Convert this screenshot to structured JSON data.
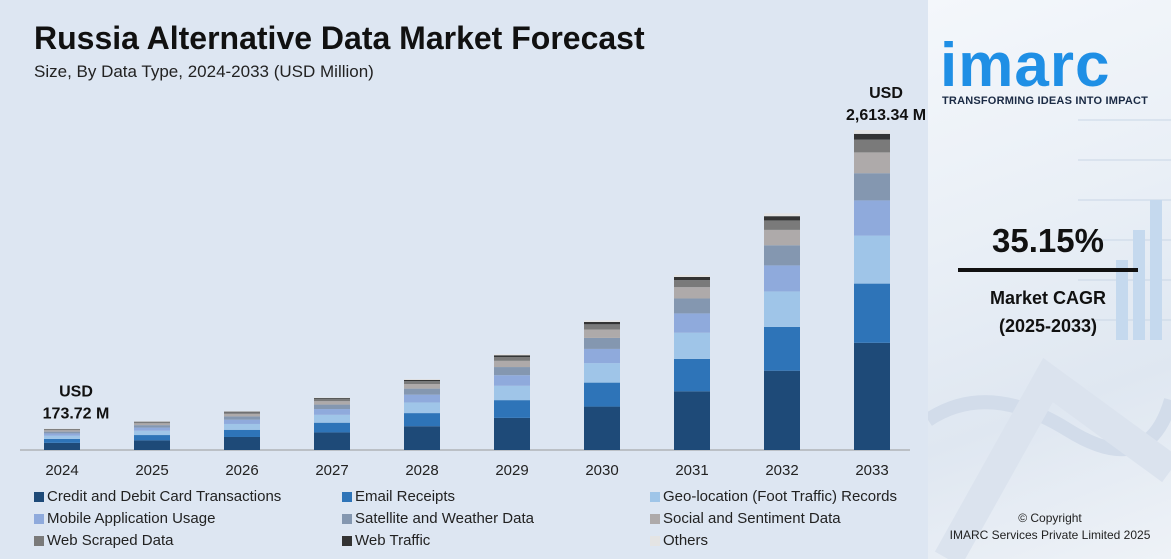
{
  "header": {
    "title": "Russia Alternative Data Market Forecast",
    "subtitle": "Size, By Data Type, 2024-2033 (USD Million)"
  },
  "branding": {
    "logo": "imarc",
    "tagline": "TRANSFORMING IDEAS INTO IMPACT",
    "logo_color": "#1f8fe5"
  },
  "cagr": {
    "value": "35.15%",
    "label_line1": "Market CAGR",
    "label_line2": "(2025-2033)"
  },
  "footer": {
    "copyright_line1": "© Copyright",
    "copyright_line2": "IMARC Services Private Limited 2025"
  },
  "chart_data": {
    "type": "bar",
    "stacked": true,
    "categories": [
      "2024",
      "2025",
      "2026",
      "2027",
      "2028",
      "2029",
      "2030",
      "2031",
      "2032",
      "2033"
    ],
    "totals": [
      173.72,
      234.8,
      317.3,
      428.8,
      579.5,
      783.1,
      1058.3,
      1430.2,
      1932.8,
      2613.34
    ],
    "annotations": [
      {
        "category": "2024",
        "line1": "USD",
        "line2": "173.72 M"
      },
      {
        "category": "2033",
        "line1": "USD",
        "line2": "2,613.34 M"
      }
    ],
    "series": [
      {
        "name": "Credit and Debit Card Transactions",
        "color": "#1e4a78",
        "share": 0.335
      },
      {
        "name": "Email Receipts",
        "color": "#2e74b8",
        "share": 0.185
      },
      {
        "name": "Geo-location (Foot Traffic) Records",
        "color": "#9fc5e8",
        "share": 0.15
      },
      {
        "name": "Mobile Application Usage",
        "color": "#8faadc",
        "share": 0.11
      },
      {
        "name": "Satellite and Weather Data",
        "color": "#8497b0",
        "share": 0.085
      },
      {
        "name": "Social and Sentiment Data",
        "color": "#aeaaaa",
        "share": 0.065
      },
      {
        "name": "Web Scraped Data",
        "color": "#7a7a7a",
        "share": 0.04
      },
      {
        "name": "Web Traffic",
        "color": "#333333",
        "share": 0.018
      },
      {
        "name": "Others",
        "color": "#e4e4e4",
        "share": 0.012
      }
    ]
  }
}
